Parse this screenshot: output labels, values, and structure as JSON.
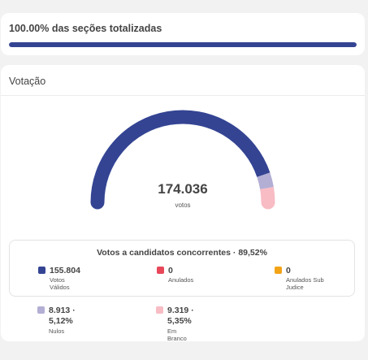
{
  "progress": {
    "text": "100.00% das seções totalizadas",
    "fraction": 1.0,
    "color": "#344493"
  },
  "votacao": {
    "title": "Votação",
    "total_votes": "174.036",
    "total_label": "votos",
    "gauge": {
      "segments": [
        {
          "name": "Votos Válidos",
          "share": 0.8952,
          "color": "#344493"
        },
        {
          "name": "Nulos",
          "share": 0.0512,
          "color": "#b2aed4"
        },
        {
          "name": "Em Branco",
          "share": 0.0535,
          "color": "#f8bcc4"
        }
      ]
    },
    "candidates_box": {
      "title": "Votos a candidatos concorrentes · 89,52%",
      "items": [
        {
          "value": "155.804",
          "label": "Votos Válidos",
          "color": "#344493"
        },
        {
          "value": "0",
          "label": "Anulados",
          "color": "#e8475a"
        },
        {
          "value": "0",
          "label": "Anulados Sub Judice",
          "color": "#f3a316"
        }
      ]
    },
    "others": [
      {
        "value": "8.913 · 5,12%",
        "label": "Nulos",
        "color": "#b2aed4"
      },
      {
        "value": "9.319 · 5,35%",
        "label": "Em Branco",
        "color": "#f8bcc4"
      }
    ]
  }
}
